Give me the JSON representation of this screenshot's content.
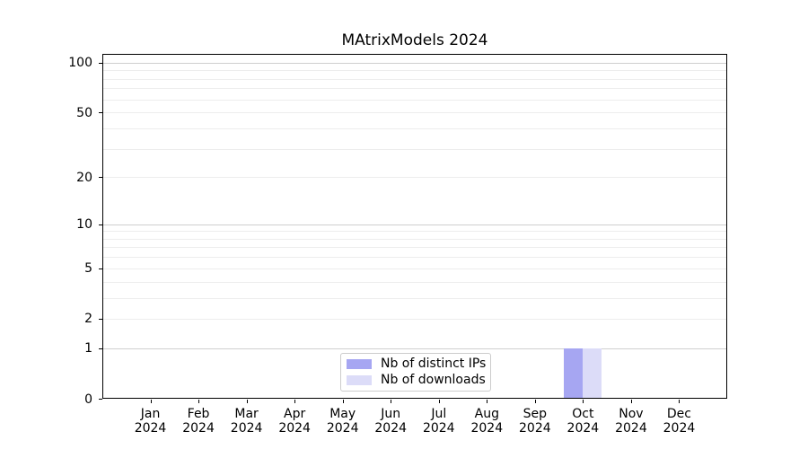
{
  "chart_data": {
    "type": "bar",
    "title": "MAtrixModels 2024",
    "categories": [
      "Jan",
      "Feb",
      "Mar",
      "Apr",
      "May",
      "Jun",
      "Jul",
      "Aug",
      "Sep",
      "Oct",
      "Nov",
      "Dec"
    ],
    "x_year_label": "2024",
    "series": [
      {
        "name": "Nb of distinct IPs",
        "color": "#a6a6f2",
        "values": [
          0,
          0,
          0,
          0,
          0,
          0,
          0,
          0,
          0,
          1,
          0,
          0
        ]
      },
      {
        "name": "Nb of downloads",
        "color": "#dcdcf8",
        "values": [
          0,
          0,
          0,
          0,
          0,
          0,
          0,
          0,
          0,
          1,
          0,
          0
        ]
      }
    ],
    "xlabel": "",
    "ylabel": "",
    "yscale": "log1p",
    "ylim": [
      0,
      113
    ],
    "yticks_labeled": [
      0,
      1,
      2,
      5,
      10,
      20,
      50,
      100
    ],
    "ygrid_major": [
      1,
      10,
      100
    ],
    "ygrid_minor": [
      2,
      3,
      4,
      5,
      6,
      7,
      8,
      9,
      20,
      30,
      40,
      50,
      60,
      70,
      80,
      90
    ],
    "grid": true,
    "legend_position": "lower center",
    "colors": {
      "axis": "#000000",
      "grid_major": "#cfcfcf",
      "grid_minor": "#ededed",
      "legend_border": "#cccccc",
      "background": "#ffffff"
    }
  }
}
